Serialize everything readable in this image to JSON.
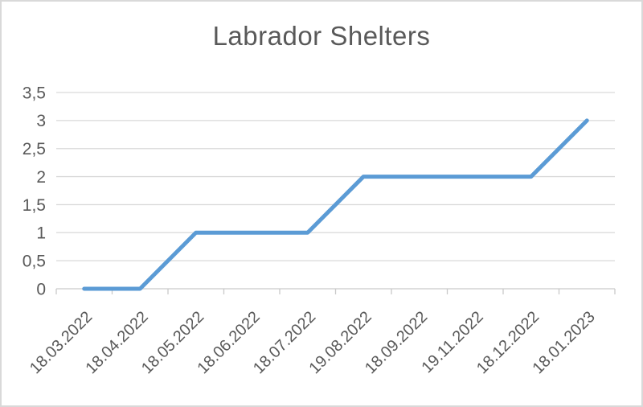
{
  "chart_data": {
    "type": "line",
    "title": "Labrador Shelters",
    "categories": [
      "18.03.2022",
      "18.04.2022",
      "18.05.2022",
      "18.06.2022",
      "18.07.2022",
      "19.08.2022",
      "18.09.2022",
      "19.11.2022",
      "18.12.2022",
      "18.01.2023"
    ],
    "series": [
      {
        "name": "Labrador Shelters",
        "values": [
          0,
          0,
          1,
          1,
          1,
          2,
          2,
          2,
          2,
          3
        ]
      }
    ],
    "xlabel": "",
    "ylabel": "",
    "ylim": [
      0,
      3.5
    ],
    "y_tick_step": 0.5,
    "y_tick_labels": [
      "0",
      "0,5",
      "1",
      "1,5",
      "2",
      "2,5",
      "3",
      "3,5"
    ],
    "decimal_separator": ",",
    "x_label_rotation_deg": -45,
    "grid": true,
    "legend": false,
    "colors": {
      "line": "#5B9BD5",
      "title_text": "#595959",
      "axis_text": "#595959",
      "gridline": "#D9D9D9",
      "axis_line": "#C9C9C9",
      "chart_border": "#D9D9D9",
      "background": "#FFFFFF"
    }
  }
}
